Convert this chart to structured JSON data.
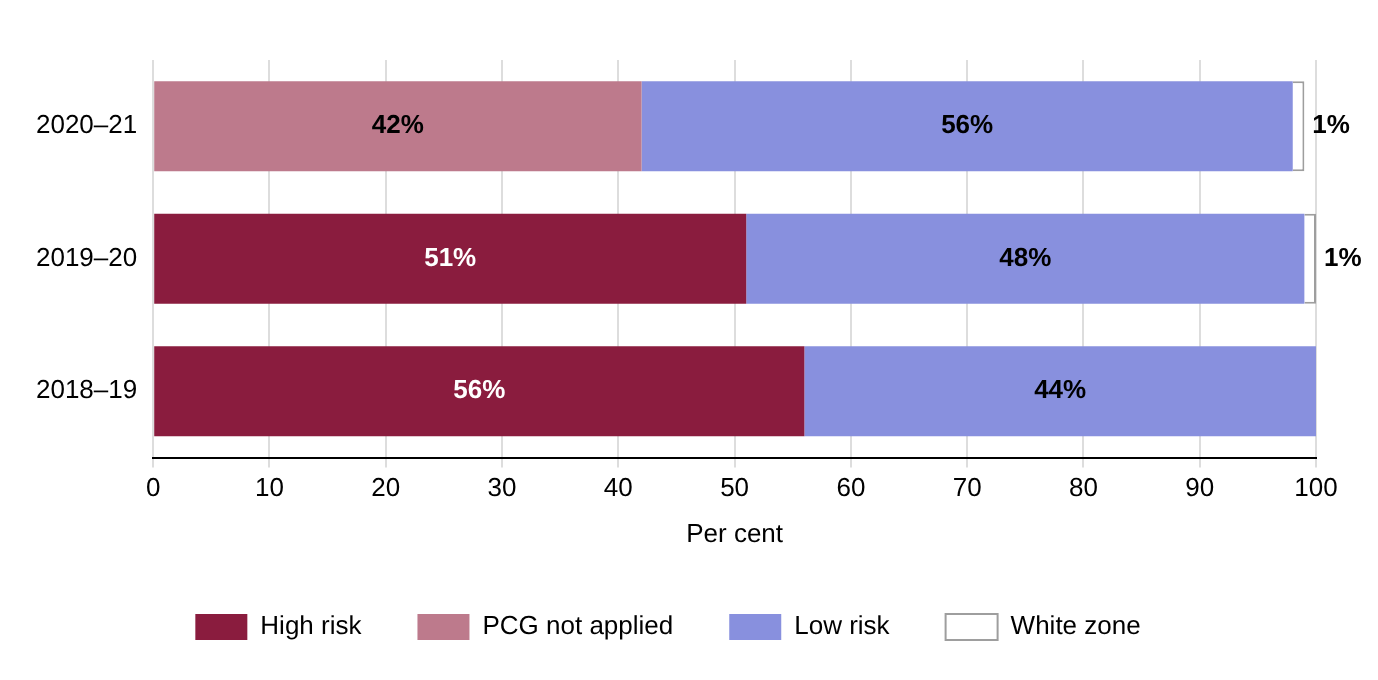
{
  "chart_data": {
    "type": "bar",
    "orientation": "horizontal",
    "stacked": true,
    "xlabel": "Per cent",
    "categories": [
      "2020–21",
      "2019–20",
      "2018–19"
    ],
    "series": [
      {
        "name": "High risk",
        "color": "#8a1c3e",
        "values": [
          null,
          51,
          56
        ],
        "value_labels": [
          null,
          "51%",
          "56%"
        ]
      },
      {
        "name": "PCG not applied",
        "color": "#bd7a8c",
        "values": [
          42,
          null,
          null
        ],
        "value_labels": [
          "42%",
          null,
          null
        ]
      },
      {
        "name": "Low risk",
        "color": "#8890de",
        "values": [
          56,
          48,
          44
        ],
        "value_labels": [
          "56%",
          "48%",
          "44%"
        ]
      },
      {
        "name": "White zone",
        "color": "#ffffff",
        "values": [
          1,
          1,
          null
        ],
        "value_labels": [
          "1%",
          "1%",
          null
        ]
      }
    ],
    "xlim": [
      0,
      100
    ],
    "xticks": [
      0,
      10,
      20,
      30,
      40,
      50,
      60,
      70,
      80,
      90,
      100
    ],
    "grid": "x",
    "legend": "bottom"
  }
}
